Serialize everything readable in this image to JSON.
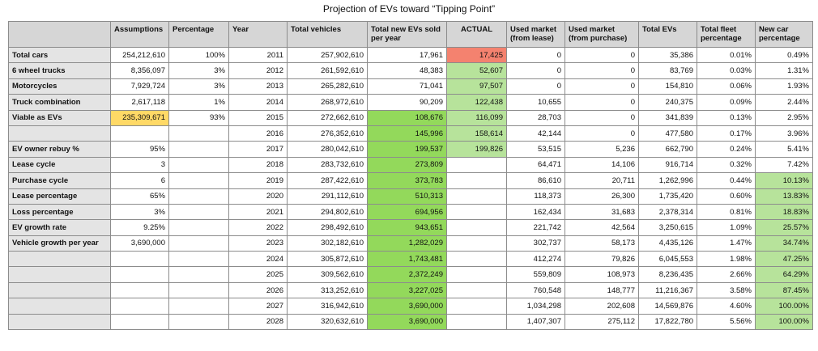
{
  "title": "Projection of EVs toward “Tipping Point”",
  "table": {
    "header": [
      null,
      "Assumptions",
      "Percentage",
      "Year",
      "Total vehicles",
      "Total new EVs sold per year",
      "ACTUAL",
      "Used market (from lease)",
      "Used market (from purchase)",
      "Total EVs",
      "Total fleet percentage",
      "New car percentage"
    ],
    "rows": [
      [
        "Total cars",
        "254,212,610",
        "100%",
        "2011",
        "257,902,610",
        "17,961",
        "17,425",
        "0",
        "0",
        "35,386",
        "0.01%",
        "0.49%"
      ],
      [
        "6 wheel trucks",
        "8,356,097",
        "3%",
        "2012",
        "261,592,610",
        "48,383",
        "52,607",
        "0",
        "0",
        "83,769",
        "0.03%",
        "1.31%"
      ],
      [
        "Motorcycles",
        "7,929,724",
        "3%",
        "2013",
        "265,282,610",
        "71,041",
        "97,507",
        "0",
        "0",
        "154,810",
        "0.06%",
        "1.93%"
      ],
      [
        "Truck combination",
        "2,617,118",
        "1%",
        "2014",
        "268,972,610",
        "90,209",
        "122,438",
        "10,655",
        "0",
        "240,375",
        "0.09%",
        "2.44%"
      ],
      [
        "Viable as EVs",
        "235,309,671",
        "93%",
        "2015",
        "272,662,610",
        "108,676",
        "116,099",
        "28,703",
        "0",
        "341,839",
        "0.13%",
        "2.95%"
      ],
      [
        null,
        null,
        null,
        "2016",
        "276,352,610",
        "145,996",
        "158,614",
        "42,144",
        "0",
        "477,580",
        "0.17%",
        "3.96%"
      ],
      [
        "EV owner rebuy %",
        "95%",
        null,
        "2017",
        "280,042,610",
        "199,537",
        "199,826",
        "53,515",
        "5,236",
        "662,790",
        "0.24%",
        "5.41%"
      ],
      [
        "Lease cycle",
        "3",
        null,
        "2018",
        "283,732,610",
        "273,809",
        null,
        "64,471",
        "14,106",
        "916,714",
        "0.32%",
        "7.42%"
      ],
      [
        "Purchase cycle",
        "6",
        null,
        "2019",
        "287,422,610",
        "373,783",
        null,
        "86,610",
        "20,711",
        "1,262,996",
        "0.44%",
        "10.13%"
      ],
      [
        "Lease percentage",
        "65%",
        null,
        "2020",
        "291,112,610",
        "510,313",
        null,
        "118,373",
        "26,300",
        "1,735,420",
        "0.60%",
        "13.83%"
      ],
      [
        "Loss percentage",
        "3%",
        null,
        "2021",
        "294,802,610",
        "694,956",
        null,
        "162,434",
        "31,683",
        "2,378,314",
        "0.81%",
        "18.83%"
      ],
      [
        "EV growth rate",
        "9.25%",
        null,
        "2022",
        "298,492,610",
        "943,651",
        null,
        "221,742",
        "42,564",
        "3,250,615",
        "1.09%",
        "25.57%"
      ],
      [
        "Vehicle growth per year",
        "3,690,000",
        null,
        "2023",
        "302,182,610",
        "1,282,029",
        null,
        "302,737",
        "58,173",
        "4,435,126",
        "1.47%",
        "34.74%"
      ],
      [
        null,
        null,
        null,
        "2024",
        "305,872,610",
        "1,743,481",
        null,
        "412,274",
        "79,826",
        "6,045,553",
        "1.98%",
        "47.25%"
      ],
      [
        null,
        null,
        null,
        "2025",
        "309,562,610",
        "2,372,249",
        null,
        "559,809",
        "108,973",
        "8,236,435",
        "2.66%",
        "64.29%"
      ],
      [
        null,
        null,
        null,
        "2026",
        "313,252,610",
        "3,227,025",
        null,
        "760,548",
        "148,777",
        "11,216,367",
        "3.58%",
        "87.45%"
      ],
      [
        null,
        null,
        null,
        "2027",
        "316,942,610",
        "3,690,000",
        null,
        "1,034,298",
        "202,608",
        "14,569,876",
        "4.60%",
        "100.00%"
      ],
      [
        null,
        null,
        null,
        "2028",
        "320,632,610",
        "3,690,000",
        null,
        "1,407,307",
        "275,112",
        "17,822,780",
        "5.56%",
        "100.00%"
      ]
    ]
  }
}
